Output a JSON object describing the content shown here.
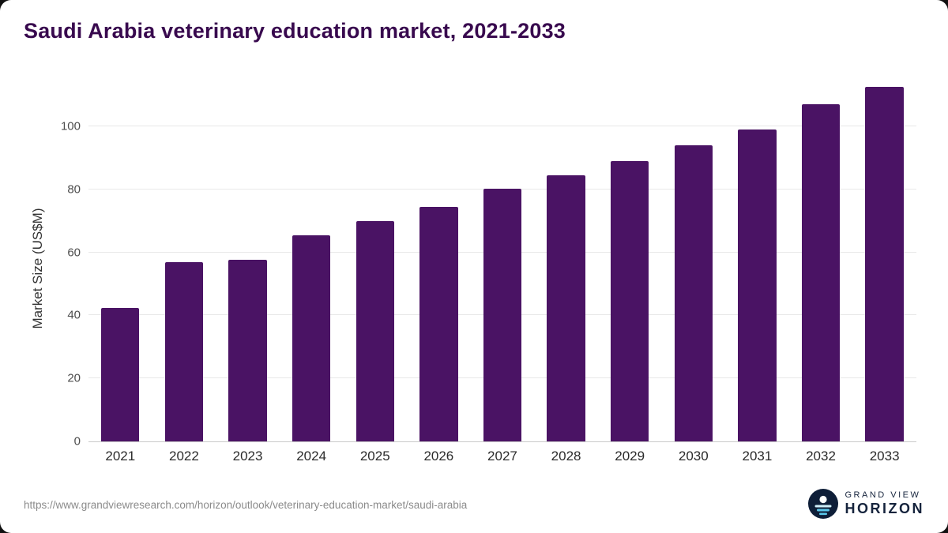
{
  "chart_data": {
    "type": "bar",
    "title": "Saudi Arabia veterinary education market, 2021-2033",
    "xlabel": "",
    "ylabel": "Market Size (US$M)",
    "categories": [
      "2021",
      "2022",
      "2023",
      "2024",
      "2025",
      "2026",
      "2027",
      "2028",
      "2029",
      "2030",
      "2031",
      "2032",
      "2033"
    ],
    "values": [
      42.3,
      56.8,
      57.6,
      65.3,
      70,
      74.5,
      80.2,
      84.4,
      89,
      94,
      99,
      107,
      112.5
    ],
    "yticks": [
      0,
      20,
      40,
      60,
      80,
      100
    ],
    "ylim": [
      0,
      115
    ],
    "grid": true,
    "legend": false,
    "bar_color": "#4a1364",
    "grid_color": "#e8e8e8",
    "axis_color": "#c9c9c9"
  },
  "footer": {
    "source_url": "https://www.grandviewresearch.com/horizon/outlook/veterinary-education-market/saudi-arabia",
    "logo_line1": "GRAND VIEW",
    "logo_line2": "HORIZON"
  },
  "icons": {
    "logo_icon": "horizon-sun-over-water-icon"
  },
  "colors": {
    "title": "#38094e",
    "logo_navy": "#16243d",
    "logo_circle": "#0e1e38",
    "logo_wave": "#5bc8ec"
  }
}
